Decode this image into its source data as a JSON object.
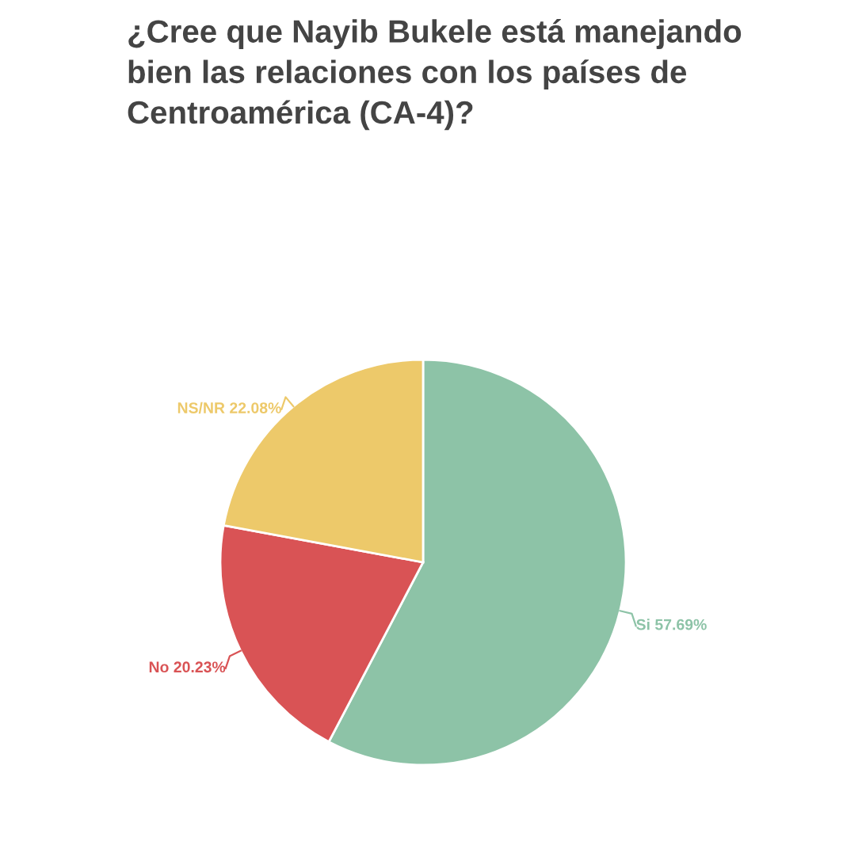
{
  "chart_data": {
    "type": "pie",
    "title": "¿Cree que Nayib Bukele está manejando\nbien las relaciones con los países de\nCentroamérica (CA-4)?",
    "categories": [
      "Si",
      "No",
      "NS/NR"
    ],
    "values": [
      57.69,
      20.23,
      22.08
    ],
    "value_labels": [
      "57.69%",
      "20.23%",
      "22.08%"
    ],
    "colors": [
      "#8dc3a7",
      "#d95355",
      "#edc96a"
    ],
    "legend": false
  }
}
